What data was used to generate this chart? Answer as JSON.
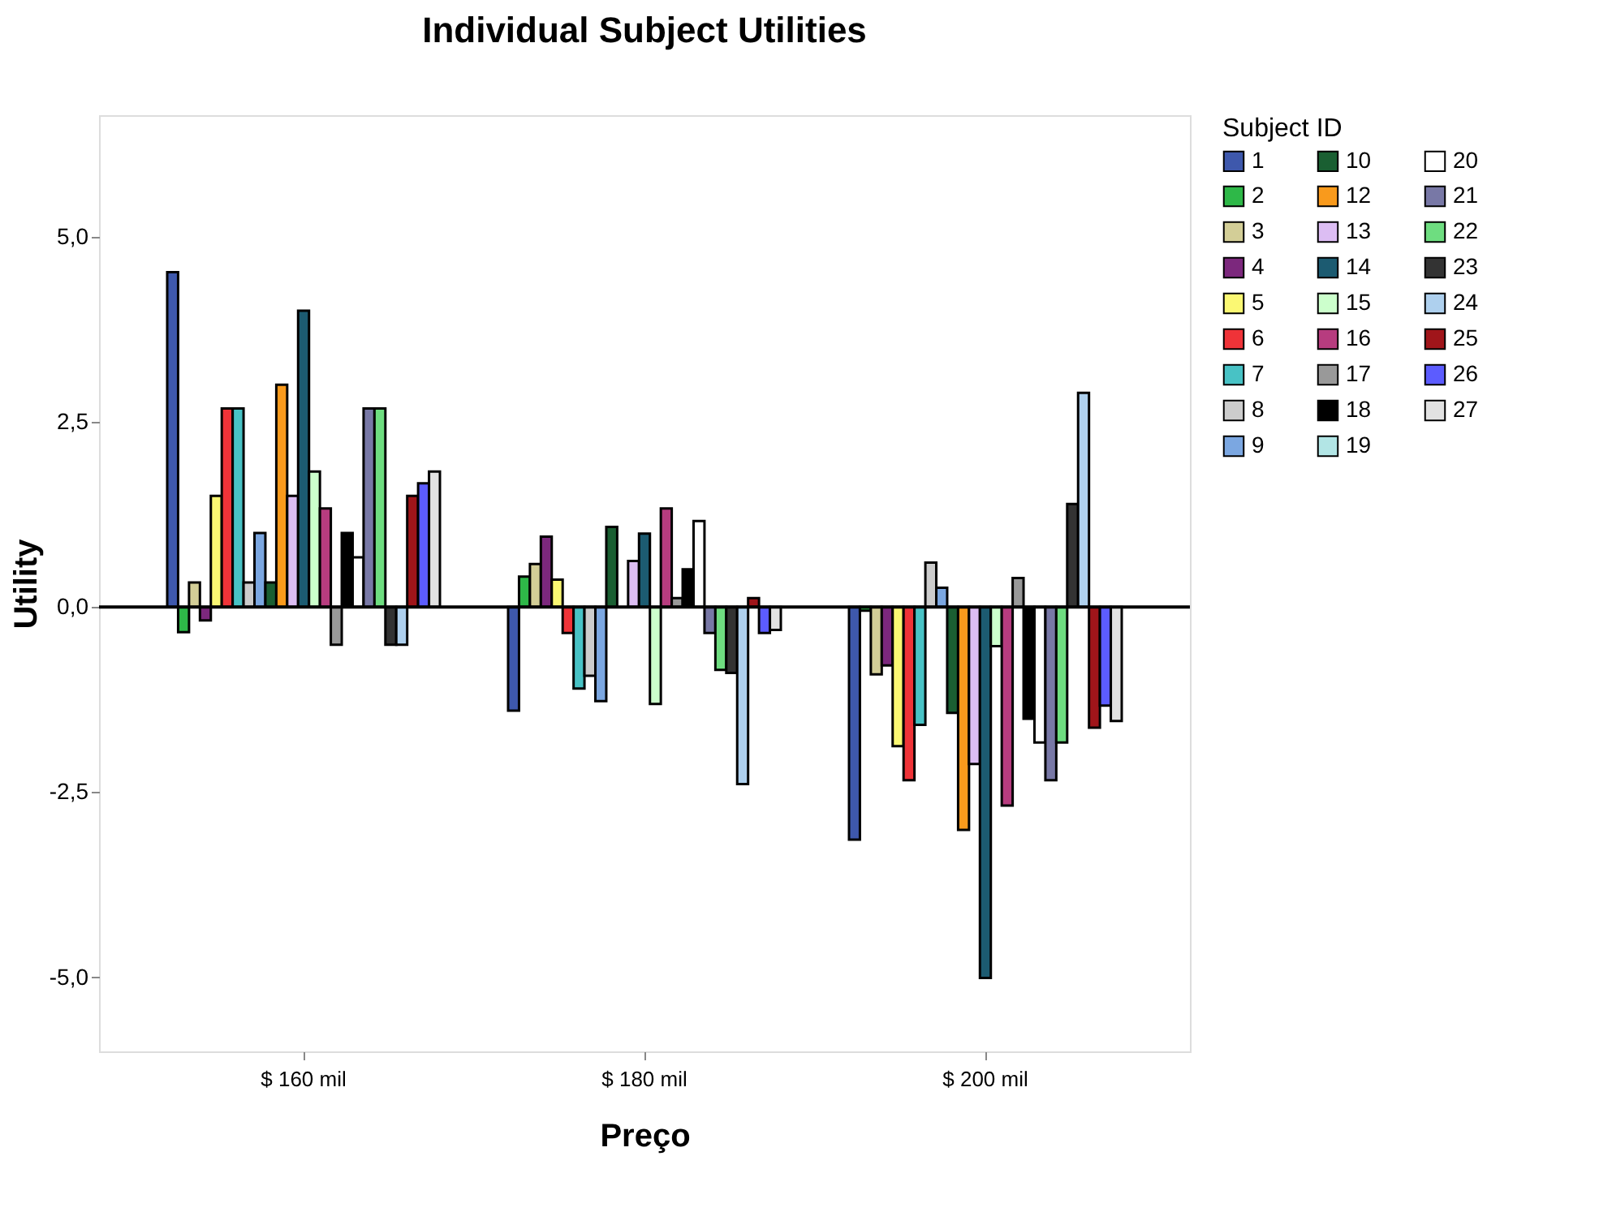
{
  "chart_data": {
    "type": "bar",
    "title": "Individual Subject Utilities",
    "xlabel": "Preço",
    "ylabel": "Utility",
    "legend_title": "Subject ID",
    "categories": [
      "$ 160 mil",
      "$ 180 mil",
      "$ 200 mil"
    ],
    "series": [
      {
        "name": "1",
        "color": "#3e58ac",
        "values": [
          4.52,
          -1.4,
          -3.14
        ]
      },
      {
        "name": "2",
        "color": "#2eb848",
        "values": [
          -0.34,
          0.41,
          -0.05
        ]
      },
      {
        "name": "3",
        "color": "#d3ce97",
        "values": [
          0.33,
          0.58,
          -0.91
        ]
      },
      {
        "name": "4",
        "color": "#7c287d",
        "values": [
          -0.18,
          0.95,
          -0.79
        ]
      },
      {
        "name": "5",
        "color": "#fbf873",
        "values": [
          1.5,
          0.37,
          -1.88
        ]
      },
      {
        "name": "6",
        "color": "#ef3338",
        "values": [
          2.68,
          -0.35,
          -2.34
        ]
      },
      {
        "name": "7",
        "color": "#48c2c5",
        "values": [
          2.68,
          -1.1,
          -1.59
        ]
      },
      {
        "name": "8",
        "color": "#cccccc",
        "values": [
          0.33,
          -0.93,
          0.6
        ]
      },
      {
        "name": "9",
        "color": "#7ba7e1",
        "values": [
          1.0,
          -1.27,
          0.26
        ]
      },
      {
        "name": "10",
        "color": "#1a5f32",
        "values": [
          0.33,
          1.08,
          -1.43
        ]
      },
      {
        "name": "12",
        "color": "#f99a1c",
        "values": [
          3.0,
          null,
          -3.01
        ]
      },
      {
        "name": "13",
        "color": "#dcbdf3",
        "values": [
          1.5,
          0.62,
          -2.12
        ]
      },
      {
        "name": "14",
        "color": "#1c5b71",
        "values": [
          4.0,
          0.99,
          -5.01
        ]
      },
      {
        "name": "15",
        "color": "#ccffcc",
        "values": [
          1.83,
          -1.31,
          -0.53
        ]
      },
      {
        "name": "16",
        "color": "#b73c7f",
        "values": [
          1.33,
          1.33,
          -2.68
        ]
      },
      {
        "name": "17",
        "color": "#999999",
        "values": [
          -0.51,
          0.12,
          0.39
        ]
      },
      {
        "name": "18",
        "color": "#000000",
        "values": [
          1.0,
          0.51,
          -1.51
        ]
      },
      {
        "name": "19",
        "color": "#b2e5e5",
        "values": [
          null,
          null,
          null
        ]
      },
      {
        "name": "20",
        "color": "#ffffff",
        "values": [
          0.67,
          1.16,
          -1.83
        ]
      },
      {
        "name": "21",
        "color": "#7878a6",
        "values": [
          2.68,
          -0.35,
          -2.34
        ]
      },
      {
        "name": "22",
        "color": "#6edd80",
        "values": [
          2.68,
          -0.85,
          -1.83
        ]
      },
      {
        "name": "23",
        "color": "#333333",
        "values": [
          -0.51,
          -0.89,
          1.39
        ]
      },
      {
        "name": "24",
        "color": "#aed0ee",
        "values": [
          -0.51,
          -2.39,
          2.89
        ]
      },
      {
        "name": "25",
        "color": "#a0151a",
        "values": [
          1.5,
          0.12,
          -1.63
        ]
      },
      {
        "name": "26",
        "color": "#5c5cff",
        "values": [
          1.67,
          -0.35,
          -1.33
        ]
      },
      {
        "name": "27",
        "color": "#e2e2e2",
        "values": [
          1.83,
          -0.31,
          -1.54
        ]
      }
    ],
    "ylim": [
      -6,
      6.64
    ],
    "yticks": [
      {
        "value": -5,
        "label": "-5,0"
      },
      {
        "value": -2.5,
        "label": "-2,5"
      },
      {
        "value": 0,
        "label": "0,0"
      },
      {
        "value": 2.5,
        "label": "2,5"
      },
      {
        "value": 5,
        "label": "5,0"
      }
    ],
    "ref_lines": [
      {
        "axis": "y",
        "value": 0
      }
    ],
    "grid": false,
    "legend": "right"
  }
}
